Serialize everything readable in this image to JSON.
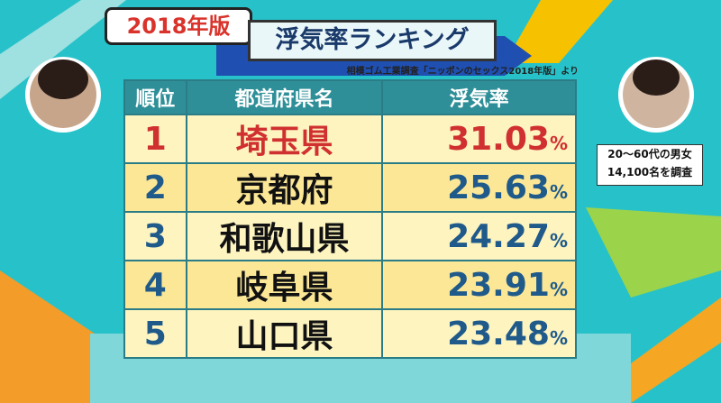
{
  "header": {
    "badge": "2018年版",
    "title": "浮気率ランキング",
    "source": "相模ゴム工業調査「ニッポンのセックス2018年版」より"
  },
  "table": {
    "columns": [
      "順位",
      "都道府県名",
      "浮気率"
    ],
    "rows": [
      {
        "rank": "1",
        "name": "埼玉県",
        "rate": "31.03",
        "unit": "%"
      },
      {
        "rank": "2",
        "name": "京都府",
        "rate": "25.63",
        "unit": "%"
      },
      {
        "rank": "3",
        "name": "和歌山県",
        "rate": "24.27",
        "unit": "%"
      },
      {
        "rank": "4",
        "name": "岐阜県",
        "rate": "23.91",
        "unit": "%"
      },
      {
        "rank": "5",
        "name": "山口県",
        "rate": "23.48",
        "unit": "%"
      }
    ]
  },
  "note": {
    "line1": "20～60代の男女",
    "line2": "14,100名を調査"
  }
}
